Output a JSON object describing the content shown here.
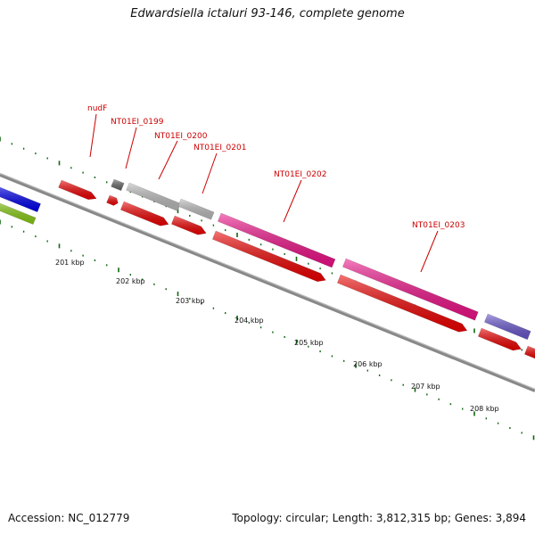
{
  "title": "Edwardsiella ictaluri 93-146, complete genome",
  "footer": {
    "accession": "Accession: NC_012779",
    "topology": "Topology: circular; Length: 3,812,315 bp; Genes: 3,894"
  },
  "colors": {
    "cds": "#ee0000",
    "rrna_like": "#ee1188",
    "grey_gene": "#bbbbbb",
    "dark_gene": "#666666",
    "blue_gene": "#0000ee",
    "purple_gene": "#6655cc",
    "green_gene": "#88cc11",
    "backbone": "#888888",
    "ticks": "#116611",
    "label": "#cc0000"
  },
  "gene_labels": [
    "nudF",
    "NT01EI_0199",
    "NT01EI_0200",
    "NT01EI_0201",
    "NT01EI_0202",
    "NT01EI_0203"
  ],
  "kbp_ticks": [
    "201 kbp",
    "202 kbp",
    "203 kbp",
    "204 kbp",
    "205 kbp",
    "206 kbp",
    "207 kbp",
    "208 kbp"
  ]
}
